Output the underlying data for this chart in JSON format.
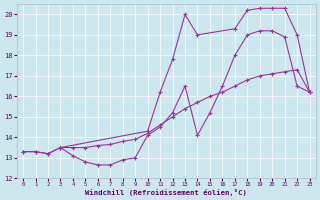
{
  "xlabel": "Windchill (Refroidissement éolien,°C)",
  "bg_color": "#cce8ee",
  "line_color": "#993399",
  "grid_color": "#aad4dd",
  "xlim": [
    -0.5,
    23.5
  ],
  "ylim": [
    12,
    20.5
  ],
  "xticks": [
    0,
    1,
    2,
    3,
    4,
    5,
    6,
    7,
    8,
    9,
    10,
    11,
    12,
    13,
    14,
    15,
    16,
    17,
    18,
    19,
    20,
    21,
    22,
    23
  ],
  "yticks": [
    12,
    13,
    14,
    15,
    16,
    17,
    18,
    19,
    20
  ],
  "line1_x": [
    0,
    1,
    2,
    3,
    4,
    5,
    6,
    7,
    8,
    9,
    10,
    11,
    12,
    13,
    14,
    15,
    16,
    17,
    18,
    19,
    20,
    21,
    22,
    23
  ],
  "line1_y": [
    13.3,
    13.3,
    13.2,
    13.5,
    13.1,
    12.8,
    12.65,
    12.65,
    12.9,
    13.0,
    14.1,
    14.5,
    15.2,
    16.5,
    14.1,
    15.2,
    16.5,
    18.0,
    19.0,
    19.2,
    19.2,
    18.9,
    16.5,
    16.2
  ],
  "line2_x": [
    0,
    1,
    2,
    3,
    4,
    5,
    6,
    7,
    8,
    9,
    10,
    11,
    12,
    13,
    14,
    15,
    16,
    17,
    18,
    19,
    20,
    21,
    22,
    23
  ],
  "line2_y": [
    13.3,
    13.3,
    13.2,
    13.5,
    13.5,
    13.5,
    13.6,
    13.65,
    13.8,
    13.9,
    14.2,
    14.6,
    15.0,
    15.4,
    15.7,
    16.0,
    16.2,
    16.5,
    16.8,
    17.0,
    17.1,
    17.2,
    17.3,
    16.2
  ],
  "line3_x": [
    3,
    10,
    11,
    12,
    13,
    14,
    17,
    18,
    19,
    20,
    21,
    22,
    23
  ],
  "line3_y": [
    13.5,
    14.3,
    16.2,
    17.8,
    20.0,
    19.0,
    19.3,
    20.2,
    20.3,
    20.3,
    20.3,
    19.0,
    16.2
  ],
  "markersize": 2.5,
  "linewidth": 0.8
}
